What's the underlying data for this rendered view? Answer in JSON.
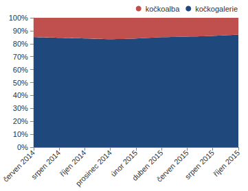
{
  "chart_data": {
    "type": "area",
    "categories": [
      "červen 2014",
      "srpen 2014",
      "říjen 2014",
      "prosinec 2014",
      "únor 2015",
      "duben 2015",
      "červen 2015",
      "srpen 2015",
      "říjen 2015"
    ],
    "series": [
      {
        "name": "kočkogalerie",
        "color": "#1f497d",
        "values": [
          85,
          84.5,
          84,
          83.5,
          84,
          85,
          85.5,
          86,
          87
        ]
      },
      {
        "name": "kočkoalba",
        "color": "#c0504d",
        "values": [
          15,
          15.5,
          16,
          16.5,
          16,
          15,
          14.5,
          14,
          13
        ]
      }
    ],
    "stacked": true,
    "ylim": [
      0,
      100
    ],
    "yticks": [
      {
        "value": 0,
        "label": "0%"
      },
      {
        "value": 10,
        "label": "10%"
      },
      {
        "value": 20,
        "label": "20%"
      },
      {
        "value": 30,
        "label": "30%"
      },
      {
        "value": 40,
        "label": "40%"
      },
      {
        "value": 50,
        "label": "50%"
      },
      {
        "value": 60,
        "label": "60%"
      },
      {
        "value": 70,
        "label": "70%"
      },
      {
        "value": 80,
        "label": "80%"
      },
      {
        "value": 90,
        "label": "90%"
      },
      {
        "value": 100,
        "label": "100%"
      }
    ],
    "grid": false,
    "legend": "top"
  }
}
